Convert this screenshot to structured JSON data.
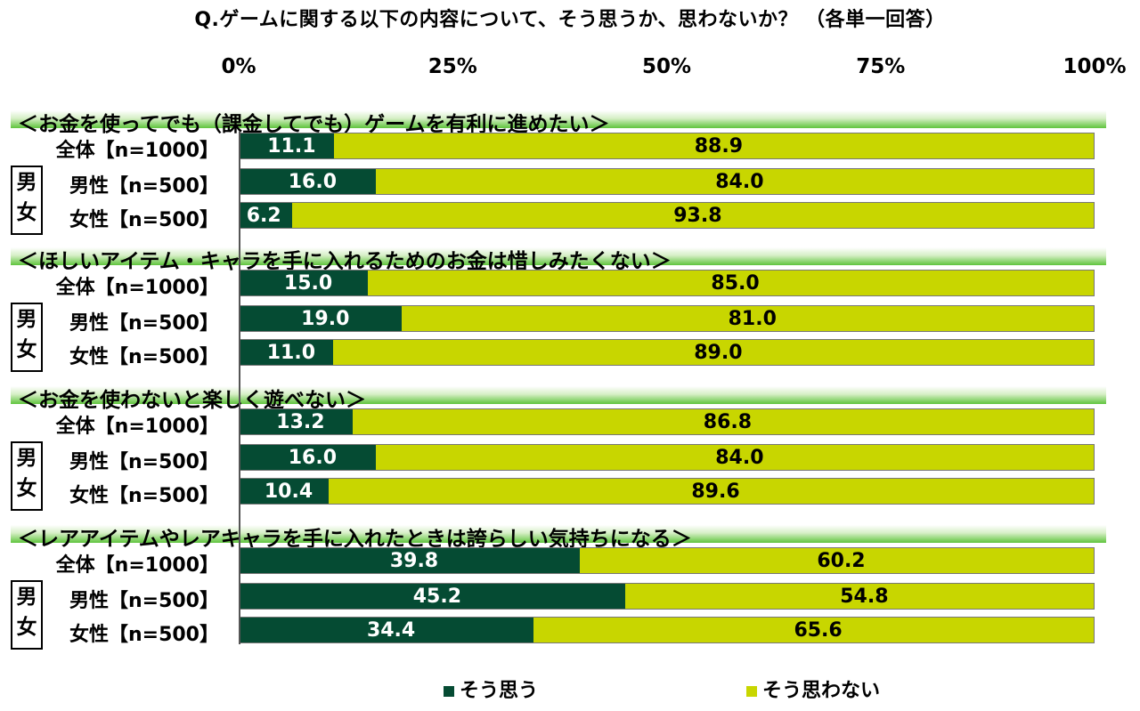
{
  "chart_data": {
    "type": "bar",
    "orientation": "horizontal-stacked-100",
    "title": "Q.ゲームに関する以下の内容について、そう思うか、思わないか？ （各単一回答）",
    "xlim": [
      0,
      100
    ],
    "ticks": [
      "0%",
      "25%",
      "50%",
      "75%",
      "100%"
    ],
    "series_colors": {
      "yes": "#054b33",
      "no": "#c8d600"
    },
    "legend": [
      {
        "key": "yes",
        "label": "そう思う",
        "color": "#054b33"
      },
      {
        "key": "no",
        "label": "そう思わない",
        "color": "#c8d600"
      }
    ],
    "gender_label_top": "男",
    "gender_label_bottom": "女",
    "sections": [
      {
        "title": "＜お金を使ってでも（課金してでも）ゲームを有利に進めたい＞",
        "rows": [
          {
            "label": "全体【n=1000】",
            "yes": 11.1,
            "no": 88.9,
            "yes_text": "11.1",
            "no_text": "88.9"
          },
          {
            "label": "男性【n=500】",
            "yes": 16.0,
            "no": 84.0,
            "yes_text": "16.0",
            "no_text": "84.0"
          },
          {
            "label": "女性【n=500】",
            "yes": 6.2,
            "no": 93.8,
            "yes_text": "6.2",
            "no_text": "93.8"
          }
        ]
      },
      {
        "title": "＜ほしいアイテム・キャラを手に入れるためのお金は惜しみたくない＞",
        "rows": [
          {
            "label": "全体【n=1000】",
            "yes": 15.0,
            "no": 85.0,
            "yes_text": "15.0",
            "no_text": "85.0"
          },
          {
            "label": "男性【n=500】",
            "yes": 19.0,
            "no": 81.0,
            "yes_text": "19.0",
            "no_text": "81.0"
          },
          {
            "label": "女性【n=500】",
            "yes": 11.0,
            "no": 89.0,
            "yes_text": "11.0",
            "no_text": "89.0"
          }
        ]
      },
      {
        "title": "＜お金を使わないと楽しく遊べない＞",
        "rows": [
          {
            "label": "全体【n=1000】",
            "yes": 13.2,
            "no": 86.8,
            "yes_text": "13.2",
            "no_text": "86.8"
          },
          {
            "label": "男性【n=500】",
            "yes": 16.0,
            "no": 84.0,
            "yes_text": "16.0",
            "no_text": "84.0"
          },
          {
            "label": "女性【n=500】",
            "yes": 10.4,
            "no": 89.6,
            "yes_text": "10.4",
            "no_text": "89.6"
          }
        ]
      },
      {
        "title": "＜レアアイテムやレアキャラを手に入れたときは誇らしい気持ちになる＞",
        "rows": [
          {
            "label": "全体【n=1000】",
            "yes": 39.8,
            "no": 60.2,
            "yes_text": "39.8",
            "no_text": "60.2"
          },
          {
            "label": "男性【n=500】",
            "yes": 45.2,
            "no": 54.8,
            "yes_text": "45.2",
            "no_text": "54.8"
          },
          {
            "label": "女性【n=500】",
            "yes": 34.4,
            "no": 65.6,
            "yes_text": "34.4",
            "no_text": "65.6"
          }
        ]
      }
    ]
  }
}
